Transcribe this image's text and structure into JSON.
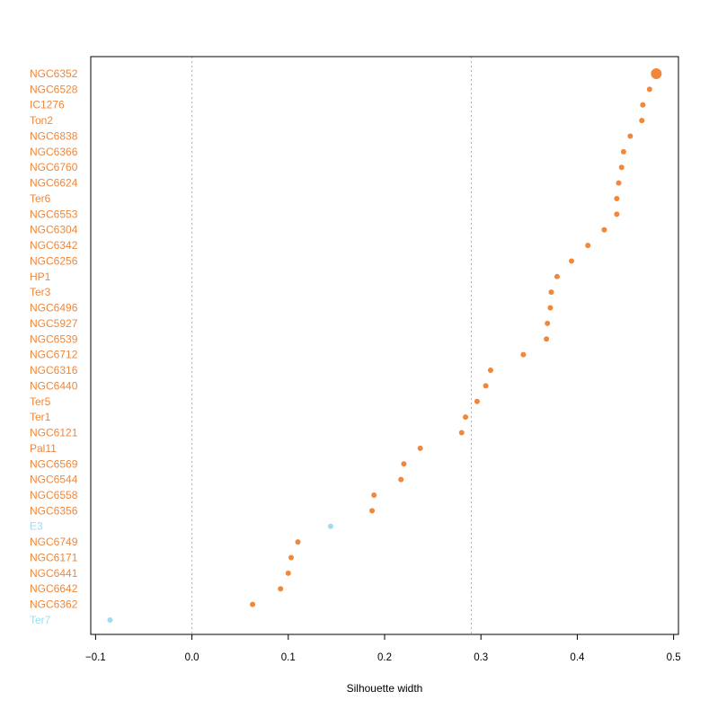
{
  "chart_data": {
    "type": "scatter",
    "orientation": "dot-plot-horizontal",
    "xlabel": "Silhouette width",
    "xlim": [
      -0.105,
      0.505
    ],
    "x_ticks": [
      -0.1,
      0.0,
      0.1,
      0.2,
      0.3,
      0.4,
      0.5
    ],
    "x_tick_labels": [
      "−0.1",
      "0.0",
      "0.1",
      "0.2",
      "0.3",
      "0.4",
      "0.5"
    ],
    "reference_lines_x": [
      0.0,
      0.29
    ],
    "grid": false,
    "colors": {
      "group_a": "#f0873a",
      "group_b": "#9fdcef",
      "axis": "#000000",
      "reference_line": "#b0b0b0"
    },
    "points": [
      {
        "label": "NGC6352",
        "x": 0.482,
        "group": "a",
        "emphasized": true
      },
      {
        "label": "NGC6528",
        "x": 0.475,
        "group": "a"
      },
      {
        "label": "IC1276",
        "x": 0.468,
        "group": "a"
      },
      {
        "label": "Ton2",
        "x": 0.467,
        "group": "a"
      },
      {
        "label": "NGC6838",
        "x": 0.455,
        "group": "a"
      },
      {
        "label": "NGC6366",
        "x": 0.448,
        "group": "a"
      },
      {
        "label": "NGC6760",
        "x": 0.446,
        "group": "a"
      },
      {
        "label": "NGC6624",
        "x": 0.443,
        "group": "a"
      },
      {
        "label": "Ter6",
        "x": 0.441,
        "group": "a"
      },
      {
        "label": "NGC6553",
        "x": 0.441,
        "group": "a"
      },
      {
        "label": "NGC6304",
        "x": 0.428,
        "group": "a"
      },
      {
        "label": "NGC6342",
        "x": 0.411,
        "group": "a"
      },
      {
        "label": "NGC6256",
        "x": 0.394,
        "group": "a"
      },
      {
        "label": "HP1",
        "x": 0.379,
        "group": "a"
      },
      {
        "label": "Ter3",
        "x": 0.373,
        "group": "a"
      },
      {
        "label": "NGC6496",
        "x": 0.372,
        "group": "a"
      },
      {
        "label": "NGC5927",
        "x": 0.369,
        "group": "a"
      },
      {
        "label": "NGC6539",
        "x": 0.368,
        "group": "a"
      },
      {
        "label": "NGC6712",
        "x": 0.344,
        "group": "a"
      },
      {
        "label": "NGC6316",
        "x": 0.31,
        "group": "a"
      },
      {
        "label": "NGC6440",
        "x": 0.305,
        "group": "a"
      },
      {
        "label": "Ter5",
        "x": 0.296,
        "group": "a"
      },
      {
        "label": "Ter1",
        "x": 0.284,
        "group": "a"
      },
      {
        "label": "NGC6121",
        "x": 0.28,
        "group": "a"
      },
      {
        "label": "Pal11",
        "x": 0.237,
        "group": "a"
      },
      {
        "label": "NGC6569",
        "x": 0.22,
        "group": "a"
      },
      {
        "label": "NGC6544",
        "x": 0.217,
        "group": "a"
      },
      {
        "label": "NGC6558",
        "x": 0.189,
        "group": "a"
      },
      {
        "label": "NGC6356",
        "x": 0.187,
        "group": "a"
      },
      {
        "label": "E3",
        "x": 0.144,
        "group": "b"
      },
      {
        "label": "NGC6749",
        "x": 0.11,
        "group": "a"
      },
      {
        "label": "NGC6171",
        "x": 0.103,
        "group": "a"
      },
      {
        "label": "NGC6441",
        "x": 0.1,
        "group": "a"
      },
      {
        "label": "NGC6642",
        "x": 0.092,
        "group": "a"
      },
      {
        "label": "NGC6362",
        "x": 0.063,
        "group": "a"
      },
      {
        "label": "Ter7",
        "x": -0.085,
        "group": "b"
      }
    ]
  }
}
